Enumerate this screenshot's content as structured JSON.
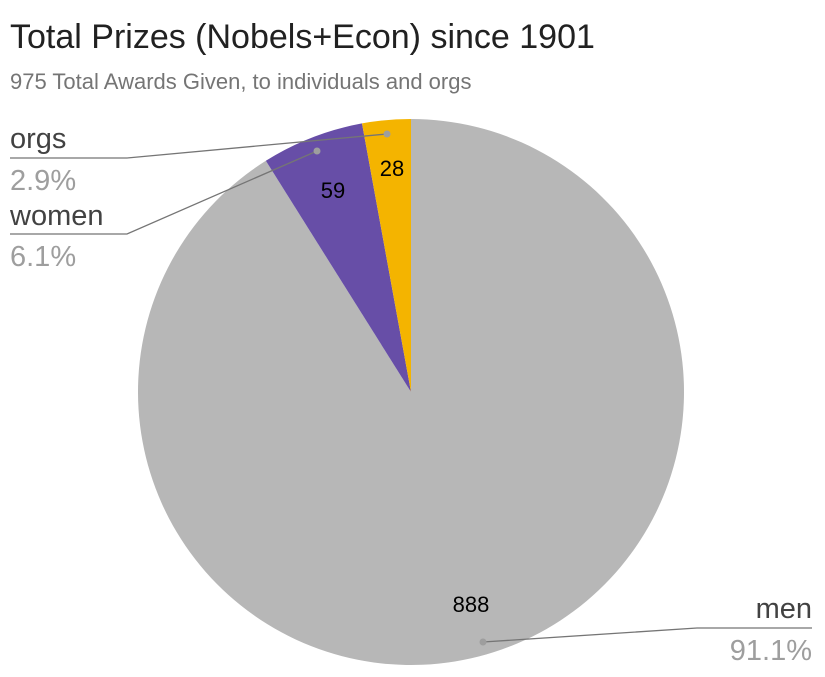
{
  "chart_data": {
    "type": "pie",
    "title": "Total Prizes (Nobels+Econ) since 1901",
    "subtitle": "975 Total Awards Given, to individuals and orgs",
    "legend": "labeled-slices",
    "slices": [
      {
        "label": "men",
        "value": 888,
        "value_label": "888",
        "percent_label": "91.1%",
        "color": "#b7b7b7"
      },
      {
        "label": "women",
        "value": 59,
        "value_label": "59",
        "percent_label": "6.1%",
        "color": "#674ea7"
      },
      {
        "label": "orgs",
        "value": 28,
        "value_label": "28",
        "percent_label": "2.9%",
        "color": "#f4b400"
      }
    ]
  }
}
